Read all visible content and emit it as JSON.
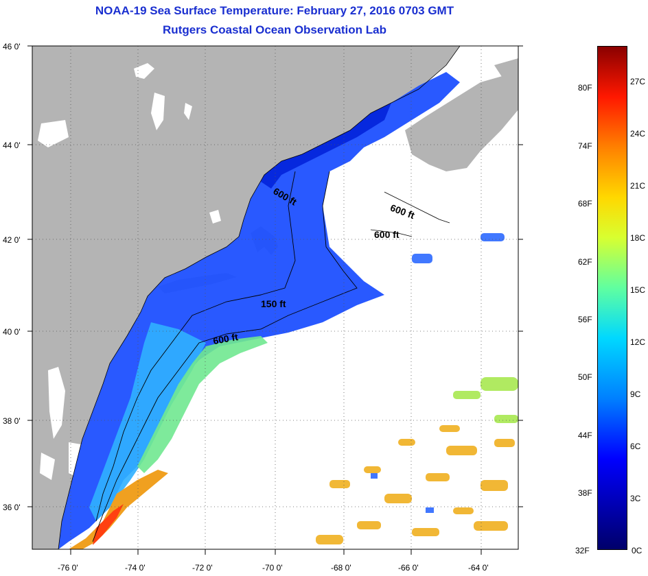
{
  "title": {
    "line1": "NOAA-19 Sea Surface Temperature:  February 27, 2016 0703 GMT",
    "line2": "Rutgers Coastal Ocean Observation Lab"
  },
  "axes": {
    "lat_labels": [
      "46 0'",
      "44 0'",
      "42 0'",
      "40 0'",
      "38 0'",
      "36 0'"
    ],
    "lon_labels": [
      "-76 0'",
      "-74 0'",
      "-72 0'",
      "-70 0'",
      "-68 0'",
      "-66 0'",
      "-64 0'"
    ],
    "lat_range": [
      35,
      46
    ],
    "lon_range": [
      -77,
      -63
    ]
  },
  "depth_labels": [
    "600 ft",
    "600 ft",
    "600 ft",
    "150 ft",
    "600 ft"
  ],
  "colorbar": {
    "fahrenheit": [
      "80F",
      "74F",
      "68F",
      "62F",
      "56F",
      "50F",
      "44F",
      "38F",
      "32F"
    ],
    "celsius": [
      "27C",
      "24C",
      "21C",
      "18C",
      "15C",
      "12C",
      "9C",
      "6C",
      "3C",
      "0C"
    ]
  },
  "colors": {
    "title": "#1a2fd0",
    "land": "#b4b4b4",
    "cold_water": "#1e50ff",
    "warm_water": "#f0b020"
  }
}
